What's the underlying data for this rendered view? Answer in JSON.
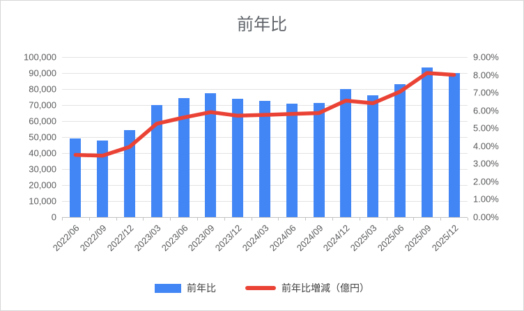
{
  "chart_data": {
    "type": "bar",
    "combo": "bar+line",
    "title": "前年比",
    "categories": [
      "2022/06",
      "2022/09",
      "2022/12",
      "2023/03",
      "2023/06",
      "2023/09",
      "2023/12",
      "2024/03",
      "2024/06",
      "2024/09",
      "2024/12",
      "2025/03",
      "2025/06",
      "2025/09",
      "2025/12"
    ],
    "series": [
      {
        "name": "前年比",
        "type": "bar",
        "axis": "left",
        "color": "#4285f4",
        "values": [
          49000,
          48000,
          54500,
          70000,
          74500,
          77500,
          74000,
          72500,
          71000,
          71500,
          80000,
          76000,
          83000,
          93500,
          90000
        ]
      },
      {
        "name": "前年比増減（億円）",
        "type": "line",
        "axis": "right",
        "color": "#ea4335",
        "values": [
          3.5,
          3.45,
          3.95,
          5.25,
          5.6,
          5.9,
          5.7,
          5.75,
          5.8,
          5.85,
          6.55,
          6.4,
          7.05,
          8.1,
          8.0
        ]
      }
    ],
    "left_axis": {
      "min": 0,
      "max": 100000,
      "step": 10000,
      "ticks": [
        "100,000",
        "90,000",
        "80,000",
        "70,000",
        "60,000",
        "50,000",
        "40,000",
        "30,000",
        "20,000",
        "10,000",
        "0"
      ]
    },
    "right_axis": {
      "min": 0,
      "max": 9,
      "step": 1,
      "ticks": [
        "9.00%",
        "8.00%",
        "7.00%",
        "6.00%",
        "5.00%",
        "4.00%",
        "3.00%",
        "2.00%",
        "1.00%",
        "0.00%"
      ]
    },
    "grid": true,
    "legend_position": "bottom",
    "xlabel_rotation_deg": -45
  }
}
